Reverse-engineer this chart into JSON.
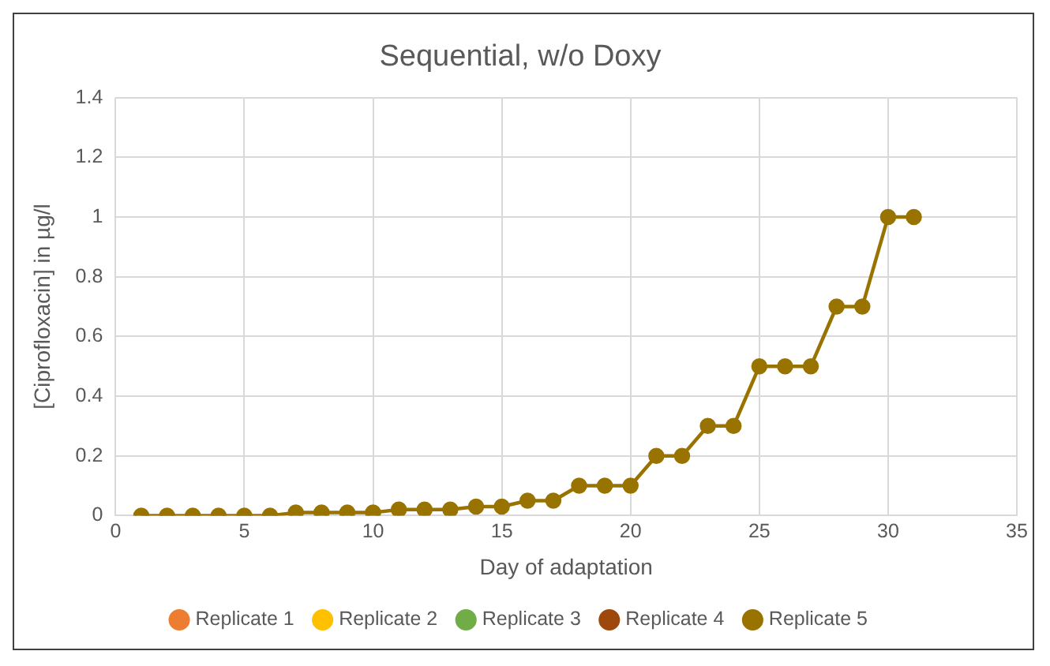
{
  "chart_data": {
    "type": "line",
    "title": "Sequential, w/o Doxy",
    "xlabel": "Day of adaptation",
    "ylabel": "[Ciprofloxacin] in µg/l",
    "x": [
      1,
      2,
      3,
      4,
      5,
      6,
      7,
      8,
      9,
      10,
      11,
      12,
      13,
      14,
      15,
      16,
      17,
      18,
      19,
      20,
      21,
      22,
      23,
      24,
      25,
      26,
      27,
      28,
      29,
      30,
      31
    ],
    "series": [
      {
        "name": "Replicate 1",
        "color": "#ed7d31",
        "values": [
          null,
          null,
          null,
          null,
          null,
          null,
          null,
          null,
          null,
          null,
          null,
          null,
          null,
          null,
          null,
          null,
          null,
          null,
          null,
          null,
          null,
          null,
          null,
          null,
          null,
          null,
          null,
          null,
          null,
          null,
          null
        ]
      },
      {
        "name": "Replicate 2",
        "color": "#ffc000",
        "values": [
          null,
          null,
          null,
          null,
          null,
          null,
          null,
          null,
          null,
          null,
          null,
          null,
          null,
          null,
          null,
          null,
          null,
          null,
          null,
          null,
          null,
          null,
          null,
          null,
          null,
          null,
          null,
          null,
          null,
          null,
          null
        ]
      },
      {
        "name": "Replicate 3",
        "color": "#70ad47",
        "values": [
          null,
          null,
          null,
          null,
          null,
          null,
          null,
          null,
          null,
          null,
          null,
          null,
          null,
          null,
          null,
          null,
          null,
          null,
          null,
          null,
          null,
          null,
          null,
          null,
          null,
          null,
          null,
          null,
          null,
          null,
          null
        ]
      },
      {
        "name": "Replicate 4",
        "color": "#9e480e",
        "values": [
          null,
          null,
          null,
          null,
          null,
          null,
          null,
          null,
          null,
          null,
          null,
          null,
          null,
          null,
          null,
          null,
          null,
          null,
          null,
          null,
          null,
          null,
          null,
          null,
          null,
          null,
          null,
          null,
          null,
          null,
          null
        ]
      },
      {
        "name": "Replicate 5",
        "color": "#997300",
        "values": [
          0,
          0,
          0,
          0,
          0,
          0,
          0.01,
          0.01,
          0.01,
          0.01,
          0.02,
          0.02,
          0.02,
          0.03,
          0.03,
          0.05,
          0.05,
          0.1,
          0.1,
          0.1,
          0.2,
          0.2,
          0.3,
          0.3,
          0.5,
          0.5,
          0.5,
          0.7,
          0.7,
          1,
          1
        ]
      }
    ],
    "xlim": [
      0,
      35
    ],
    "xticks": [
      0,
      5,
      10,
      15,
      20,
      25,
      30,
      35
    ],
    "ylim": [
      0,
      1.4
    ],
    "yticks": [
      0,
      0.2,
      0.4,
      0.6,
      0.8,
      1,
      1.2,
      1.4
    ],
    "grid": true,
    "legend": "bottom",
    "marker": "circle",
    "line_style": "solid"
  }
}
